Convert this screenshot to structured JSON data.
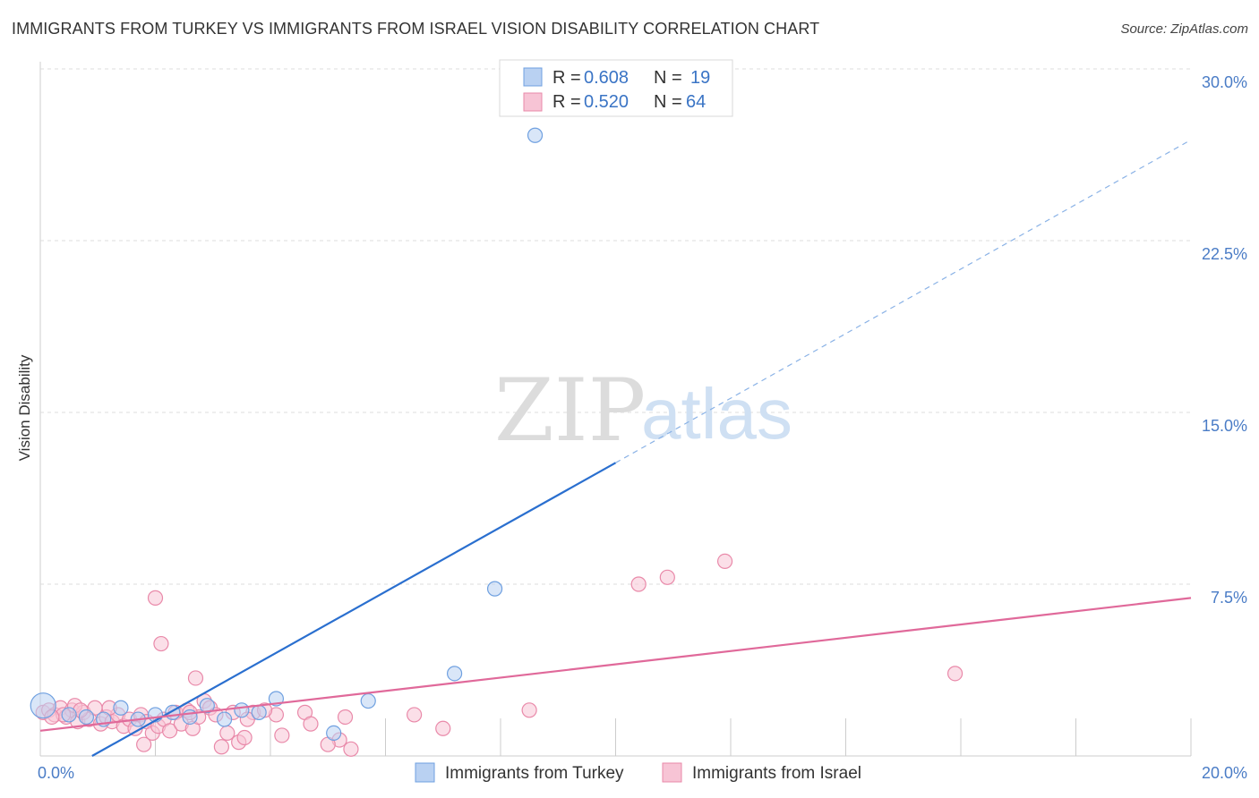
{
  "chart_data": {
    "type": "scatter",
    "title": "IMMIGRANTS FROM TURKEY VS IMMIGRANTS FROM ISRAEL VISION DISABILITY CORRELATION CHART",
    "source": "Source: ZipAtlas.com",
    "watermark": {
      "zip": "ZIP",
      "atlas": "atlas"
    },
    "xlabel": "",
    "ylabel": "Vision Disability",
    "xlim": [
      0,
      20
    ],
    "ylim": [
      0,
      30
    ],
    "x_tick_labels": [
      {
        "value": 0,
        "label": "0.0%"
      },
      {
        "value": 20,
        "label": "20.0%"
      }
    ],
    "y_ticks": [
      {
        "value": 7.5,
        "label": "7.5%"
      },
      {
        "value": 15,
        "label": "15.0%"
      },
      {
        "value": 22.5,
        "label": "22.5%"
      },
      {
        "value": 30,
        "label": "30.0%"
      }
    ],
    "legend": [
      {
        "r_label": "R =",
        "r_value": "0.608",
        "n_label": "N =",
        "n_value": "19"
      },
      {
        "r_label": "R =",
        "r_value": "0.520",
        "n_label": "N =",
        "n_value": "64"
      }
    ],
    "series": [
      {
        "name": "Immigrants from Turkey",
        "color": "#6fa0e0",
        "fill": "#b9d1f2",
        "line_color": "#2a6fcf",
        "trend": {
          "x0": 0.9,
          "y0": 0.0,
          "x1": 10.0,
          "y1": 12.8,
          "dash_x1": 20.0,
          "dash_y1": 26.9
        },
        "points": [
          [
            0.05,
            2.2
          ],
          [
            0.5,
            1.8
          ],
          [
            0.8,
            1.7
          ],
          [
            1.4,
            2.1
          ],
          [
            1.7,
            1.6
          ],
          [
            2.0,
            1.8
          ],
          [
            2.6,
            1.7
          ],
          [
            2.9,
            2.2
          ],
          [
            3.2,
            1.6
          ],
          [
            3.5,
            2.0
          ],
          [
            3.8,
            1.9
          ],
          [
            4.1,
            2.5
          ],
          [
            5.1,
            1.0
          ],
          [
            5.7,
            2.4
          ],
          [
            7.2,
            3.6
          ],
          [
            7.9,
            7.3
          ],
          [
            8.6,
            27.1
          ],
          [
            2.3,
            1.9
          ],
          [
            1.1,
            1.6
          ]
        ]
      },
      {
        "name": "Immigrants from Israel",
        "color": "#e989a9",
        "fill": "#f7c4d5",
        "line_color": "#e0699a",
        "trend": {
          "x0": 0.0,
          "y0": 1.1,
          "x1": 20.0,
          "y1": 6.9
        },
        "points": [
          [
            0.05,
            1.9
          ],
          [
            0.15,
            2.0
          ],
          [
            0.25,
            1.8
          ],
          [
            0.35,
            2.1
          ],
          [
            0.45,
            1.7
          ],
          [
            0.55,
            2.0
          ],
          [
            0.65,
            1.5
          ],
          [
            0.75,
            1.9
          ],
          [
            0.85,
            1.6
          ],
          [
            0.95,
            2.1
          ],
          [
            1.05,
            1.4
          ],
          [
            1.15,
            1.7
          ],
          [
            1.25,
            1.5
          ],
          [
            1.35,
            1.8
          ],
          [
            1.45,
            1.3
          ],
          [
            1.55,
            1.6
          ],
          [
            1.65,
            1.2
          ],
          [
            1.75,
            1.8
          ],
          [
            1.85,
            1.5
          ],
          [
            1.95,
            1.0
          ],
          [
            2.05,
            1.3
          ],
          [
            2.15,
            1.6
          ],
          [
            2.25,
            1.1
          ],
          [
            2.35,
            1.9
          ],
          [
            2.45,
            1.4
          ],
          [
            2.55,
            2.0
          ],
          [
            2.65,
            1.2
          ],
          [
            2.75,
            1.7
          ],
          [
            2.85,
            2.4
          ],
          [
            2.95,
            2.1
          ],
          [
            3.05,
            1.8
          ],
          [
            3.15,
            0.4
          ],
          [
            3.25,
            1.0
          ],
          [
            3.35,
            1.9
          ],
          [
            3.45,
            0.6
          ],
          [
            3.55,
            0.8
          ],
          [
            3.7,
            1.9
          ],
          [
            4.1,
            1.8
          ],
          [
            4.6,
            1.9
          ],
          [
            4.7,
            1.4
          ],
          [
            5.2,
            0.7
          ],
          [
            5.4,
            0.3
          ],
          [
            6.5,
            1.8
          ],
          [
            7.0,
            1.2
          ],
          [
            8.5,
            2.0
          ],
          [
            10.4,
            7.5
          ],
          [
            10.9,
            7.8
          ],
          [
            11.9,
            8.5
          ],
          [
            15.9,
            3.6
          ],
          [
            2.0,
            6.9
          ],
          [
            2.1,
            4.9
          ],
          [
            2.7,
            3.4
          ],
          [
            1.8,
            0.5
          ],
          [
            0.4,
            1.8
          ],
          [
            0.6,
            2.2
          ],
          [
            1.2,
            2.1
          ],
          [
            2.6,
            1.9
          ],
          [
            3.6,
            1.6
          ],
          [
            4.2,
            0.9
          ],
          [
            5.0,
            0.5
          ],
          [
            5.3,
            1.7
          ],
          [
            0.2,
            1.7
          ],
          [
            0.7,
            2.0
          ],
          [
            3.9,
            2.0
          ]
        ]
      }
    ]
  }
}
